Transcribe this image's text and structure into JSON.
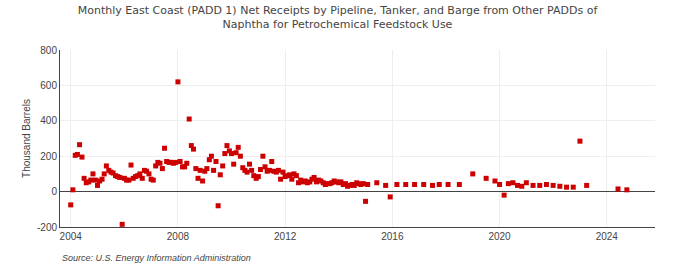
{
  "chart_data": {
    "type": "scatter",
    "title": "Monthly East Coast (PADD 1) Net Receipts by Pipeline, Tanker, and Barge from Other PADDs of\nNaphtha for Petrochemical Feedstock Use",
    "ylabel": "Thousand Barrels",
    "annotations": [
      "Source: U.S. Energy Information Administration"
    ],
    "color": "#cc0000",
    "marker": "square",
    "grid": true,
    "xlim": [
      2003.6,
      2025.8
    ],
    "xticks": [
      2004,
      2008,
      2012,
      2016,
      2020,
      2024
    ],
    "ylim": [
      -200,
      800
    ],
    "yticks": [
      -200,
      0,
      200,
      400,
      600,
      800
    ],
    "x": [
      2004.0,
      2004.08,
      2004.17,
      2004.25,
      2004.33,
      2004.42,
      2004.5,
      2004.58,
      2004.67,
      2004.75,
      2004.83,
      2004.92,
      2005.0,
      2005.08,
      2005.17,
      2005.25,
      2005.33,
      2005.42,
      2005.5,
      2005.58,
      2005.67,
      2005.75,
      2005.83,
      2005.92,
      2006.0,
      2006.08,
      2006.17,
      2006.25,
      2006.33,
      2006.42,
      2006.5,
      2006.58,
      2006.67,
      2006.75,
      2006.83,
      2006.92,
      2007.0,
      2007.08,
      2007.17,
      2007.25,
      2007.33,
      2007.42,
      2007.5,
      2007.58,
      2007.67,
      2007.75,
      2007.83,
      2007.92,
      2008.0,
      2008.08,
      2008.17,
      2008.25,
      2008.33,
      2008.42,
      2008.5,
      2008.58,
      2008.67,
      2008.75,
      2008.83,
      2008.92,
      2009.0,
      2009.08,
      2009.17,
      2009.25,
      2009.33,
      2009.42,
      2009.5,
      2009.58,
      2009.67,
      2009.75,
      2009.83,
      2009.92,
      2010.0,
      2010.08,
      2010.17,
      2010.25,
      2010.33,
      2010.42,
      2010.5,
      2010.58,
      2010.67,
      2010.75,
      2010.83,
      2010.92,
      2011.0,
      2011.08,
      2011.17,
      2011.25,
      2011.33,
      2011.42,
      2011.5,
      2011.58,
      2011.67,
      2011.75,
      2011.83,
      2011.92,
      2012.0,
      2012.08,
      2012.17,
      2012.25,
      2012.33,
      2012.42,
      2012.5,
      2012.58,
      2012.67,
      2012.75,
      2012.83,
      2012.92,
      2013.0,
      2013.08,
      2013.17,
      2013.25,
      2013.33,
      2013.42,
      2013.5,
      2013.58,
      2013.67,
      2013.75,
      2013.83,
      2013.92,
      2014.0,
      2014.08,
      2014.17,
      2014.25,
      2014.33,
      2014.42,
      2014.5,
      2014.58,
      2014.67,
      2014.75,
      2014.83,
      2014.92,
      2015.0,
      2015.08,
      2015.42,
      2015.75,
      2015.92,
      2016.17,
      2016.5,
      2016.83,
      2017.17,
      2017.5,
      2017.75,
      2018.08,
      2018.5,
      2019.0,
      2019.5,
      2019.83,
      2020.0,
      2020.17,
      2020.33,
      2020.5,
      2020.67,
      2020.83,
      2021.0,
      2021.25,
      2021.5,
      2021.75,
      2022.0,
      2022.25,
      2022.5,
      2022.75,
      2023.0,
      2023.25,
      2024.42,
      2024.75
    ],
    "values": [
      -75,
      10,
      205,
      210,
      265,
      195,
      75,
      50,
      55,
      65,
      100,
      65,
      35,
      60,
      70,
      100,
      145,
      120,
      110,
      105,
      90,
      85,
      80,
      -185,
      75,
      65,
      65,
      150,
      75,
      85,
      90,
      100,
      75,
      120,
      115,
      100,
      70,
      65,
      145,
      165,
      160,
      130,
      245,
      170,
      165,
      165,
      160,
      165,
      620,
      170,
      140,
      140,
      160,
      410,
      260,
      240,
      130,
      75,
      120,
      60,
      115,
      130,
      180,
      200,
      120,
      170,
      -80,
      95,
      145,
      215,
      260,
      230,
      215,
      155,
      220,
      250,
      200,
      135,
      120,
      110,
      155,
      120,
      90,
      75,
      85,
      125,
      200,
      140,
      115,
      120,
      170,
      115,
      110,
      120,
      70,
      110,
      85,
      90,
      95,
      70,
      100,
      90,
      50,
      65,
      55,
      60,
      50,
      55,
      70,
      80,
      55,
      65,
      60,
      50,
      40,
      45,
      45,
      50,
      60,
      55,
      50,
      55,
      40,
      45,
      30,
      35,
      40,
      35,
      50,
      45,
      40,
      45,
      -55,
      40,
      50,
      35,
      -30,
      40,
      40,
      40,
      40,
      35,
      40,
      40,
      40,
      100,
      75,
      60,
      40,
      -20,
      45,
      50,
      35,
      30,
      50,
      35,
      35,
      40,
      35,
      30,
      25,
      25,
      285,
      35,
      15,
      10
    ]
  }
}
